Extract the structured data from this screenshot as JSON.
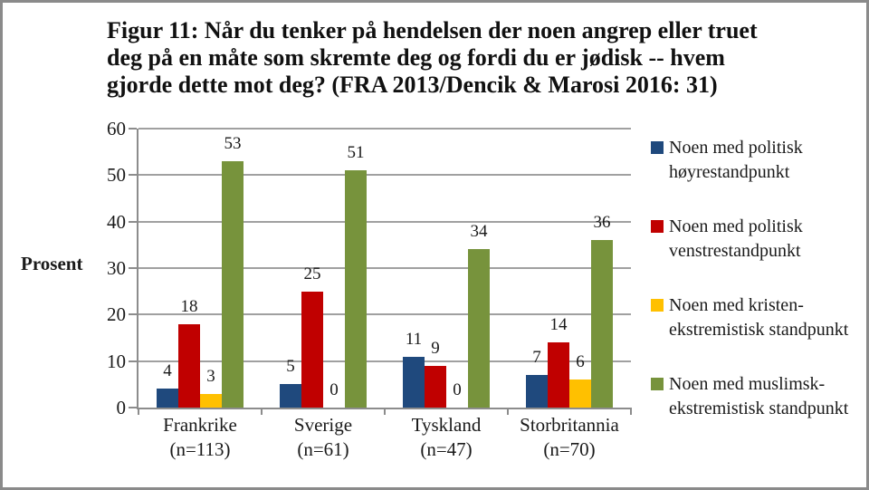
{
  "title": {
    "lines": [
      "Figur 11: Når du tenker på hendelsen der noen angrep eller truet",
      "deg på en måte som skremte deg og fordi du er jødisk -- hvem",
      "gjorde dette mot deg? (FRA 2013/Dencik & Marosi 2016: 31)"
    ]
  },
  "chart_data": {
    "type": "bar",
    "title": "Figur 11: Når du tenker på hendelsen der noen angrep eller truet deg på en måte som skremte deg og fordi du er jødisk -- hvem gjorde dette mot deg? (FRA 2013/Dencik & Marosi 2016: 31)",
    "xlabel": "",
    "ylabel": "Prosent",
    "ylim": [
      0,
      60
    ],
    "yticks": [
      0,
      10,
      20,
      30,
      40,
      50,
      60
    ],
    "grid": true,
    "legend_position": "right",
    "categories": [
      {
        "label": "Frankrike",
        "sublabel": "(n=113)"
      },
      {
        "label": "Sverige",
        "sublabel": "(n=61)"
      },
      {
        "label": "Tyskland",
        "sublabel": "(n=47)"
      },
      {
        "label": "Storbritannia",
        "sublabel": "(n=70)"
      }
    ],
    "series": [
      {
        "name": "Noen med politisk høyrestandpunkt",
        "legend_lines": [
          "Noen med politisk",
          "høyrestandpunkt"
        ],
        "color": "#1F497D",
        "values": [
          4,
          5,
          11,
          7
        ]
      },
      {
        "name": "Noen med politisk venstrestandpunkt",
        "legend_lines": [
          "Noen med politisk",
          "venstrestandpunkt"
        ],
        "color": "#C00000",
        "values": [
          18,
          25,
          9,
          14
        ]
      },
      {
        "name": "Noen med kristen-ekstremistisk standpunkt",
        "legend_lines": [
          "Noen med kristen-",
          "ekstremistisk standpunkt"
        ],
        "color": "#FFC000",
        "values": [
          3,
          0,
          0,
          6
        ]
      },
      {
        "name": "Noen med muslimsk-ekstremistisk standpunkt",
        "legend_lines": [
          "Noen med muslimsk-",
          "ekstremistisk standpunkt"
        ],
        "color": "#77933C",
        "values": [
          53,
          51,
          34,
          36
        ]
      }
    ]
  },
  "colors": {
    "gridline": "#A0A0A0",
    "axis": "#8C8C8C",
    "text": "#1A1A1A",
    "frame_border": "#8A8A8A",
    "background": "#FFFFFF"
  }
}
